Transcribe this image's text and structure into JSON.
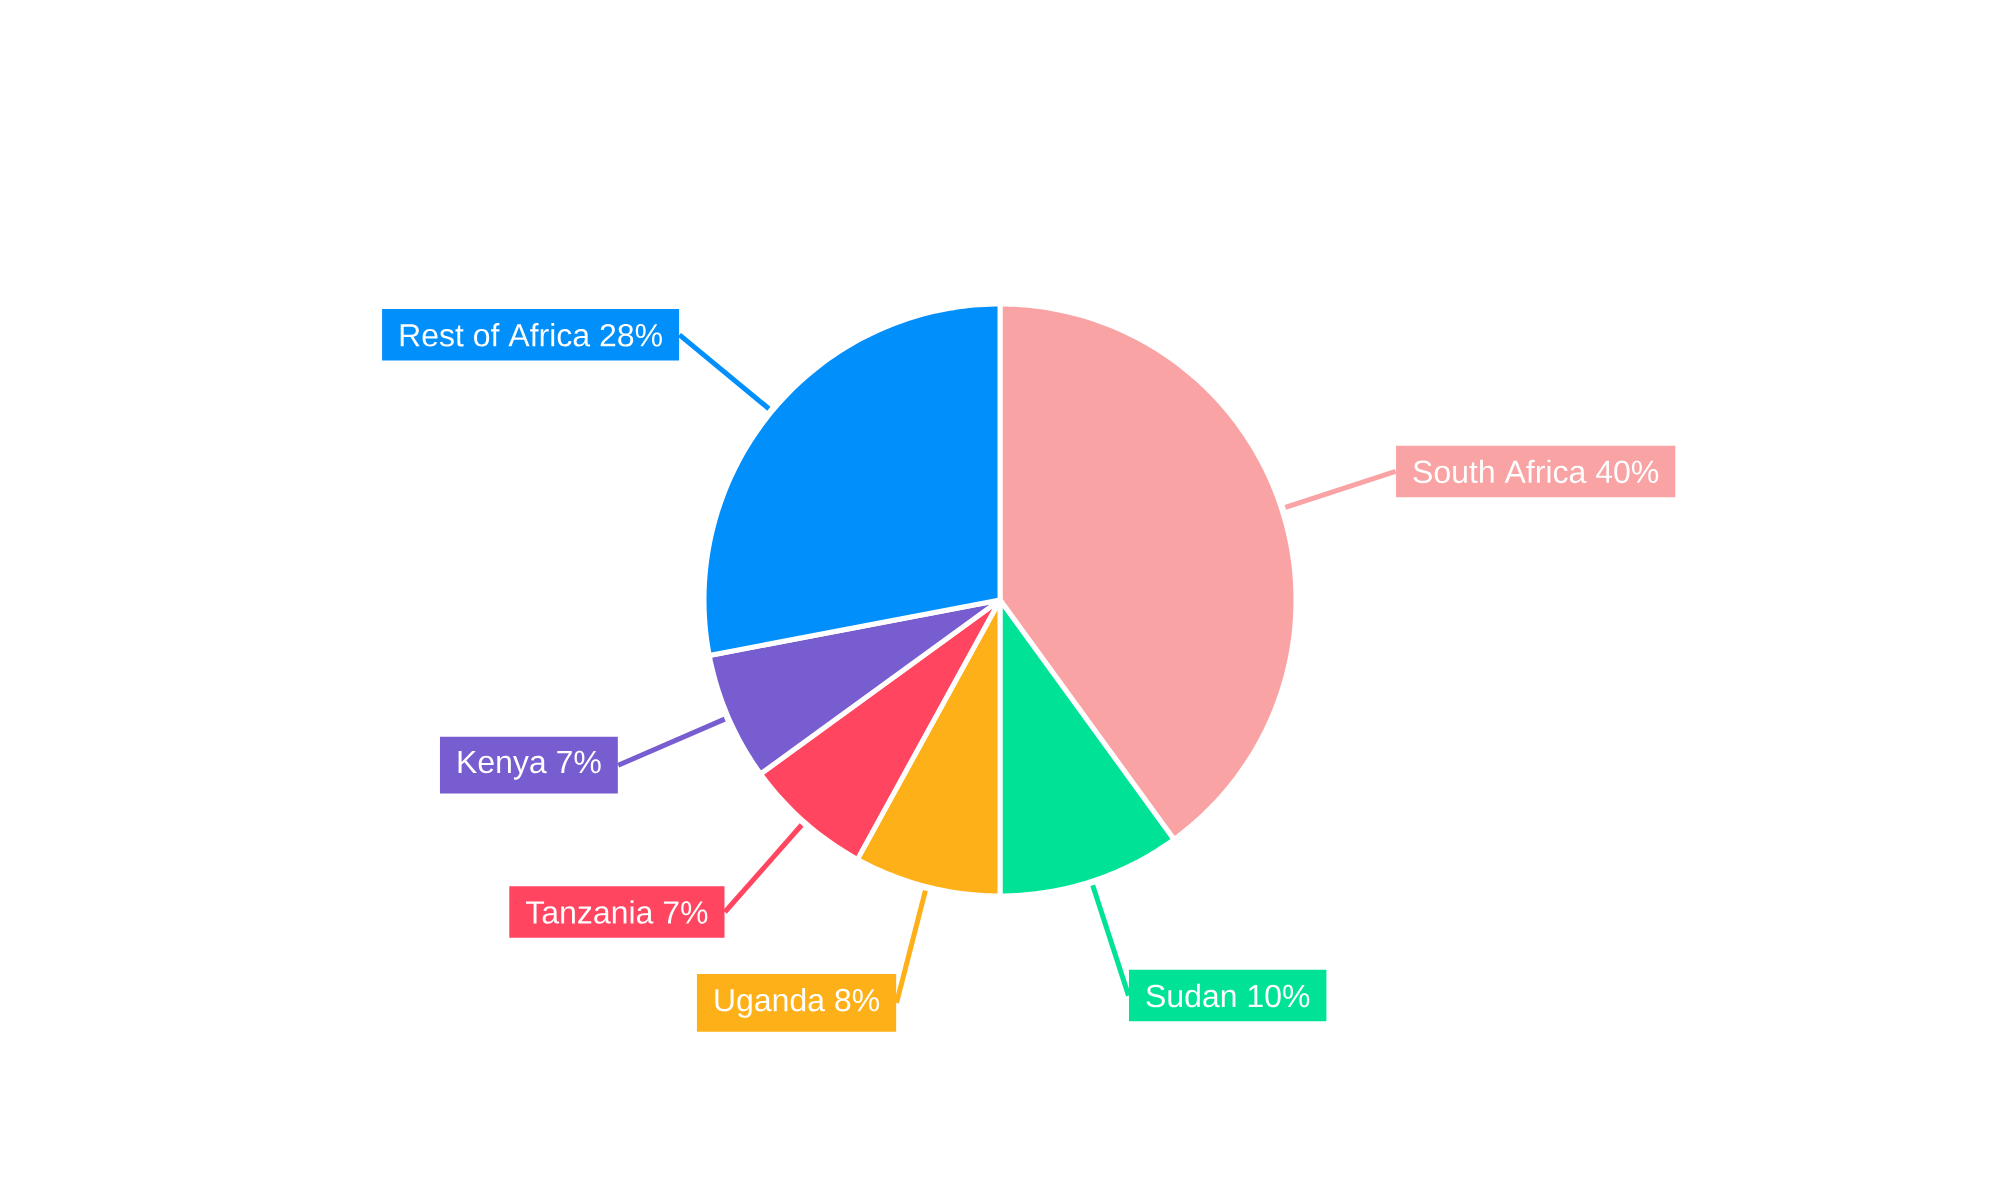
{
  "chart_data": {
    "type": "pie",
    "categories": [
      "South Africa",
      "Sudan",
      "Uganda",
      "Tanzania",
      "Kenya",
      "Rest of Africa"
    ],
    "values": [
      40,
      10,
      8,
      7,
      7,
      28
    ],
    "value_labels": [
      "40%",
      "10%",
      "8%",
      "7%",
      "7%",
      "28%"
    ],
    "colors": [
      "#f9a3a4",
      "#00e396",
      "#feb019",
      "#ff4560",
      "#775dd0",
      "#008ffb"
    ]
  }
}
